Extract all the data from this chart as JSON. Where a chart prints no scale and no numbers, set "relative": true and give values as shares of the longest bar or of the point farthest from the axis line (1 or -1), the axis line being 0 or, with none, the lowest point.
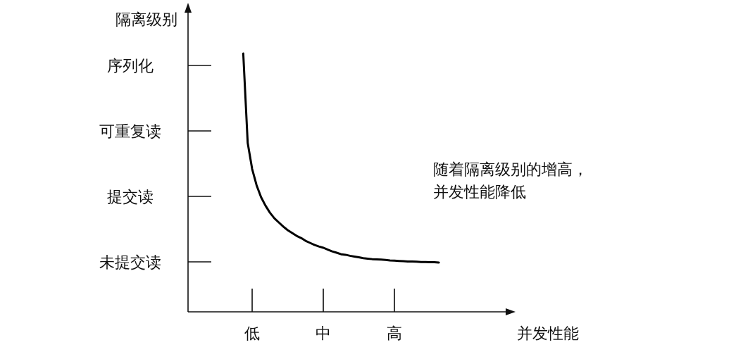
{
  "chart_data": {
    "type": "line",
    "relative": true,
    "xlabel": "并发性能",
    "ylabel": "隔离级别",
    "categories": [
      null,
      null,
      "低",
      null,
      null,
      null,
      null,
      null,
      null,
      null,
      null,
      null,
      null,
      null,
      null,
      null,
      null,
      null,
      "中",
      null,
      null,
      null,
      null,
      null,
      null,
      null,
      null,
      null,
      null,
      null,
      null,
      null,
      null,
      null,
      "高",
      null,
      null,
      null,
      null,
      null,
      null,
      null,
      null,
      null,
      null
    ],
    "series": [
      {
        "color": "#000000",
        "values": [
          1.0,
          0.654,
          0.553,
          0.49,
          0.444,
          0.411,
          0.384,
          0.362,
          0.346,
          0.33,
          0.316,
          0.305,
          0.294,
          0.286,
          0.275,
          0.267,
          0.259,
          0.253,
          0.248,
          0.241,
          0.234,
          0.229,
          0.223,
          0.221,
          0.217,
          0.214,
          0.211,
          0.208,
          0.206,
          0.204,
          0.203,
          0.202,
          0.201,
          0.199,
          0.198,
          0.197,
          0.196,
          0.195,
          0.195,
          0.194,
          0.193,
          0.193,
          0.192,
          0.192,
          0.191
        ]
      }
    ],
    "annotations": [
      "未提交读",
      "提交读",
      "可重复读",
      "序列化",
      "随着隔离级别的增高，并发性能降低"
    ]
  }
}
